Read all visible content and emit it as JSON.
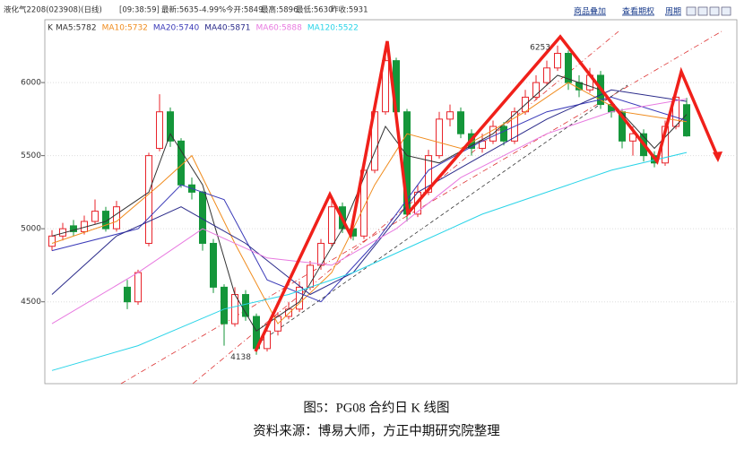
{
  "toolbar": {
    "symbol": "液化气2208(023908)(日线)",
    "time": "[09:38:59]",
    "latest": "最新:5635",
    "change": "-4.99%",
    "open": "今开:5849",
    "high": "最高:5896",
    "low": "最低:5630",
    "prev_close": "昨收:5931",
    "buttons": [
      "商品叠加",
      "查看期权",
      "周期"
    ]
  },
  "chart_data": {
    "type": "candlestick",
    "k_label": "K",
    "open": [
      4880,
      4950,
      5020,
      4980,
      5050,
      5120,
      5000,
      4600,
      4500,
      4900,
      5550,
      5800,
      5600,
      5300,
      5250,
      4900,
      4600,
      4350,
      4550,
      4400,
      4180,
      4300,
      4400,
      4450,
      4600,
      4750,
      4900,
      5150,
      5000,
      4950,
      5400,
      5800,
      6150,
      5800,
      5100,
      5250,
      5500,
      5750,
      5800,
      5650,
      5550,
      5600,
      5700,
      5600,
      5800,
      5900,
      6000,
      6100,
      6200,
      6000,
      5950,
      6050,
      5850,
      5800,
      5600,
      5650,
      5500,
      5450,
      5700,
      5849
    ],
    "high": [
      4990,
      5040,
      5060,
      5090,
      5200,
      5150,
      5190,
      4650,
      4720,
      5520,
      5920,
      5830,
      5620,
      5350,
      5260,
      4930,
      4620,
      4600,
      4580,
      4420,
      4330,
      4430,
      4500,
      4640,
      4780,
      4930,
      5200,
      5180,
      5030,
      5420,
      5850,
      6230,
      6170,
      5820,
      5300,
      5540,
      5800,
      5850,
      5830,
      5680,
      5650,
      5740,
      5730,
      5830,
      5950,
      6050,
      6150,
      6253,
      6220,
      6050,
      6100,
      6080,
      5880,
      5820,
      5700,
      5680,
      5530,
      5740,
      5960,
      5896
    ],
    "low": [
      4850,
      4920,
      4950,
      4960,
      5030,
      4980,
      4980,
      4450,
      4480,
      4880,
      5530,
      5560,
      5280,
      5200,
      4850,
      4560,
      4200,
      4330,
      4370,
      4138,
      4160,
      4270,
      4380,
      4430,
      4580,
      4720,
      4880,
      4970,
      4920,
      4930,
      5380,
      5780,
      5750,
      5050,
      5080,
      5230,
      5480,
      5700,
      5620,
      5500,
      5520,
      5580,
      5570,
      5580,
      5780,
      5880,
      5980,
      6080,
      5950,
      5900,
      5930,
      5820,
      5760,
      5550,
      5500,
      5460,
      5420,
      5430,
      5680,
      5630
    ],
    "close": [
      4950,
      5000,
      4980,
      5050,
      5120,
      5000,
      5150,
      4500,
      4700,
      5500,
      5800,
      5600,
      5300,
      5250,
      4900,
      4600,
      4350,
      4550,
      4400,
      4180,
      4300,
      4400,
      4450,
      4600,
      4750,
      4900,
      5150,
      5000,
      4950,
      5400,
      5800,
      6150,
      5800,
      5100,
      5250,
      5500,
      5750,
      5800,
      5650,
      5550,
      5600,
      5700,
      5600,
      5800,
      5900,
      6000,
      6100,
      6200,
      6000,
      5950,
      6050,
      5850,
      5800,
      5600,
      5650,
      5500,
      5450,
      5700,
      5900,
      5635
    ],
    "up_color": "#e8242b",
    "down_color": "#14963a",
    "series": [
      {
        "name": "MA5:5782",
        "color": "#333333",
        "x": [
          0,
          5,
          9,
          11,
          14,
          17,
          19,
          23,
          27,
          31,
          33,
          36,
          41,
          47,
          51,
          56,
          59
        ],
        "values": [
          4950,
          5050,
          5250,
          5650,
          5300,
          4550,
          4300,
          4500,
          5000,
          5700,
          5500,
          5450,
          5650,
          6050,
          5950,
          5550,
          5782
        ]
      },
      {
        "name": "MA10:5732",
        "color": "#f08c1e",
        "x": [
          0,
          6,
          10,
          13,
          17,
          21,
          26,
          30,
          33,
          38,
          44,
          48,
          53,
          59
        ],
        "values": [
          4900,
          5050,
          5300,
          5500,
          4900,
          4350,
          4700,
          5300,
          5650,
          5550,
          5800,
          6000,
          5800,
          5732
        ]
      },
      {
        "name": "MA20:5740",
        "color": "#3a3ab8",
        "x": [
          0,
          8,
          12,
          16,
          20,
          25,
          30,
          35,
          40,
          46,
          52,
          59
        ],
        "values": [
          4850,
          5000,
          5300,
          5200,
          4650,
          4500,
          4900,
          5400,
          5600,
          5800,
          5900,
          5740
        ]
      },
      {
        "name": "MA40:5871",
        "color": "#2a2a8a",
        "x": [
          0,
          6,
          12,
          18,
          24,
          28,
          34,
          40,
          46,
          52,
          59
        ],
        "values": [
          4550,
          4950,
          5150,
          4900,
          4550,
          4700,
          5250,
          5500,
          5750,
          5950,
          5871
        ]
      },
      {
        "name": "MA60:5888",
        "color": "#e87ae0",
        "x": [
          0,
          8,
          14,
          20,
          26,
          32,
          38,
          46,
          52,
          59
        ],
        "values": [
          4350,
          4700,
          5000,
          4800,
          4750,
          5000,
          5350,
          5650,
          5800,
          5888
        ]
      },
      {
        "name": "MA120:5522",
        "color": "#2ad4e8",
        "x": [
          0,
          8,
          16,
          22,
          28,
          34,
          40,
          46,
          52,
          59
        ],
        "values": [
          4030,
          4200,
          4450,
          4550,
          4700,
          4900,
          5100,
          5250,
          5400,
          5522
        ]
      }
    ],
    "ylim": [
      3940,
      6430
    ],
    "yticks": [
      6000,
      5500,
      5000,
      4500
    ],
    "grid": true,
    "annotations": [
      "6253",
      "4138"
    ]
  },
  "caption": {
    "title": "图5：PG08 合约日 K 线图",
    "source": "资料来源：博易大师，方正中期研究院整理"
  }
}
